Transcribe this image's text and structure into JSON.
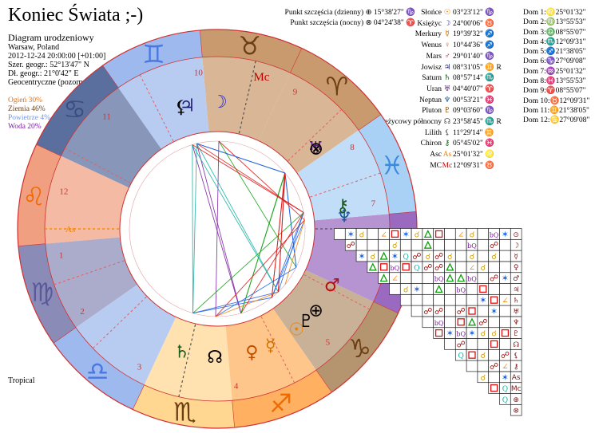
{
  "title": "Koniec Świata ;-)",
  "info": {
    "subtitle": "Diagram urodzeniowy",
    "place": "Warsaw, Poland",
    "datetime": "2012-12-24 20:00:00 [+01:00]",
    "lat": "Szer. geogr.: 52°13'47\" N",
    "lon": "Dł. geogr.: 21°0'42\" E",
    "mode": "Geocentryczne (pozorne)"
  },
  "elements": [
    {
      "label": "Ogień 30%",
      "color": "#f06a00"
    },
    {
      "label": "Ziemia 46%",
      "color": "#6b3f14"
    },
    {
      "label": "Powietrze 4%",
      "color": "#6f93e6"
    },
    {
      "label": "Woda 20%",
      "color": "#7a1aa0"
    }
  ],
  "zodiac_type": "Tropical",
  "fortune": [
    {
      "label": "Punkt szczęścia (dzienny)",
      "glyph": "⊕",
      "value": "15°38'27\" ♑"
    },
    {
      "label": "Punkt szczęścia (nocny)",
      "glyph": "⊗",
      "value": "04°24'38\" ♈"
    }
  ],
  "planets": [
    {
      "name": "Słońce",
      "glyph": "☉",
      "color": "#f08000",
      "value": "03°23'12\" ♑",
      "retro": ""
    },
    {
      "name": "Księżyc",
      "glyph": "☽",
      "color": "#2b2bd0",
      "value": "24°00'06\" ♉",
      "retro": ""
    },
    {
      "name": "Merkury",
      "glyph": "☿",
      "color": "#d07000",
      "value": "19°39'32\" ♐",
      "retro": ""
    },
    {
      "name": "Wenus",
      "glyph": "♀",
      "color": "#c05000",
      "value": "10°44'36\" ♐",
      "retro": ""
    },
    {
      "name": "Mars",
      "glyph": "♂",
      "color": "#b01010",
      "value": "29°01'40\" ♑",
      "retro": ""
    },
    {
      "name": "Jowisz",
      "glyph": "♃",
      "color": "#1a1a70",
      "value": "08°31'05\" ♊",
      "retro": "R"
    },
    {
      "name": "Saturn",
      "glyph": "♄",
      "color": "#1a5a1a",
      "value": "08°57'14\" ♏",
      "retro": ""
    },
    {
      "name": "Uran",
      "glyph": "♅",
      "color": "#5a1a7a",
      "value": "04°40'07\" ♈",
      "retro": ""
    },
    {
      "name": "Neptun",
      "glyph": "♆",
      "color": "#1a5a9a",
      "value": "00°53'21\" ♓",
      "retro": ""
    },
    {
      "name": "Pluton",
      "glyph": "♇",
      "color": "#8a4a00",
      "value": "09°03'60\" ♑",
      "retro": ""
    },
    {
      "name": "Węzeł księżycowy północny",
      "glyph": "☊",
      "color": "#555555",
      "value": "23°58'45\" ♏",
      "retro": "R"
    },
    {
      "name": "Lilith",
      "glyph": "⚸",
      "color": "#555555",
      "value": "11°29'14\" ♊",
      "retro": ""
    },
    {
      "name": "Chiron",
      "glyph": "⚷",
      "color": "#1a5a1a",
      "value": "05°45'02\" ♓",
      "retro": ""
    },
    {
      "name": "Asc",
      "glyph": "As",
      "color": "#f08000",
      "value": "25°01'32\" ♌",
      "retro": ""
    },
    {
      "name": "MC",
      "glyph": "Mc",
      "color": "#c00000",
      "value": "12°09'31\" ♉",
      "retro": ""
    }
  ],
  "houses": [
    {
      "label": "Dom 1:",
      "glyph": "♌",
      "value": "25°01'32\""
    },
    {
      "label": "Dom 2:",
      "glyph": "♍",
      "value": "13°55'53\""
    },
    {
      "label": "Dom 3:",
      "glyph": "♎",
      "value": "08°55'07\""
    },
    {
      "label": "Dom 4:",
      "glyph": "♏",
      "value": "12°09'31\""
    },
    {
      "label": "Dom 5:",
      "glyph": "♐",
      "value": "21°38'05\""
    },
    {
      "label": "Dom 6:",
      "glyph": "♑",
      "value": "27°09'08\""
    },
    {
      "label": "Dom 7:",
      "glyph": "♒",
      "value": "25°01'32\""
    },
    {
      "label": "Dom 8:",
      "glyph": "♓",
      "value": "13°55'53\""
    },
    {
      "label": "Dom 9:",
      "glyph": "♈",
      "value": "08°55'07\""
    },
    {
      "label": "Dom 10:",
      "glyph": "♉",
      "value": "12°09'31\""
    },
    {
      "label": "Dom 11:",
      "glyph": "♊",
      "value": "21°38'05\""
    },
    {
      "label": "Dom 12:",
      "glyph": "♋",
      "value": "27°09'08\""
    }
  ],
  "wheel": {
    "ascendant_longitude": 145.03,
    "mc_label": "Mc",
    "asc_label": "As",
    "sign_glyphs": [
      "♈",
      "♉",
      "♊",
      "♋",
      "♌",
      "♍",
      "♎",
      "♏",
      "♐",
      "♑",
      "♒",
      "♓"
    ],
    "sign_colors": [
      "#c99a6e",
      "#c99a6e",
      "#9db9ee",
      "#5b6f9e",
      "#f0a080",
      "#8b8bb8",
      "#9db9ee",
      "#ffd790",
      "#ffb060",
      "#b59470",
      "#9a6ac0",
      "#a9d0f5"
    ],
    "glyph_colors": [
      "#6b3f14",
      "#6b3f14",
      "#4a78e0",
      "#3a4f80",
      "#f06a00",
      "#5a5a9a",
      "#4a78e0",
      "#6b3f14",
      "#f06a00",
      "#6b3f14",
      "#7a1aa0",
      "#3a8adf"
    ],
    "house_cusps": [
      145.03,
      163.93,
      188.92,
      222.15,
      261.63,
      297.15,
      325.03,
      343.93,
      8.92,
      42.15,
      81.63,
      117.15
    ],
    "house_numbers": [
      "1",
      "2",
      "3",
      "4",
      "5",
      "6",
      "7",
      "8",
      "9",
      "10",
      "11",
      "12"
    ],
    "bodies": [
      {
        "glyph": "☉",
        "lon": 273.39,
        "color": "#f08000"
      },
      {
        "glyph": "☽",
        "lon": 54.0,
        "color": "#2b2bd0"
      },
      {
        "glyph": "☿",
        "lon": 259.66,
        "color": "#d07000"
      },
      {
        "glyph": "♀",
        "lon": 250.74,
        "color": "#c05000"
      },
      {
        "glyph": "♂",
        "lon": 299.03,
        "color": "#b01010"
      },
      {
        "glyph": "♃",
        "lon": 68.52,
        "color": "#1a1a70"
      },
      {
        "glyph": "♄",
        "lon": 218.95,
        "color": "#1a5a1a"
      },
      {
        "glyph": "♅",
        "lon": 4.67,
        "color": "#5a1a7a"
      },
      {
        "glyph": "♆",
        "lon": 330.89,
        "color": "#1a5a9a"
      },
      {
        "glyph": "♇",
        "lon": 279.07,
        "color": "#000000"
      },
      {
        "glyph": "☊",
        "lon": 233.98,
        "color": "#000000"
      },
      {
        "glyph": "⚸",
        "lon": 71.49,
        "color": "#000000"
      },
      {
        "glyph": "⚷",
        "lon": 335.75,
        "color": "#1a5a1a"
      },
      {
        "glyph": "⊕",
        "lon": 285.64,
        "color": "#000000"
      },
      {
        "glyph": "⊗",
        "lon": 4.41,
        "color": "#000000"
      }
    ]
  },
  "aspect_grid": {
    "row_glyphs": [
      "⊙",
      "☽",
      "☿",
      "♀",
      "♂",
      "♃",
      "♄",
      "♅",
      "♆",
      "♇",
      "☊",
      "⚸",
      "⚷",
      "As",
      "Mc",
      "⊕",
      "⊗"
    ],
    "symbol_colors": {
      "conj": "#d0a000",
      "opp": "#a01010",
      "trine": "#10a010",
      "square": "#e01010",
      "sextile": "#2060e0",
      "quincunx": "#10b0a0",
      "semisq": "#f08000",
      "sesq": "#7a1aa0"
    }
  }
}
